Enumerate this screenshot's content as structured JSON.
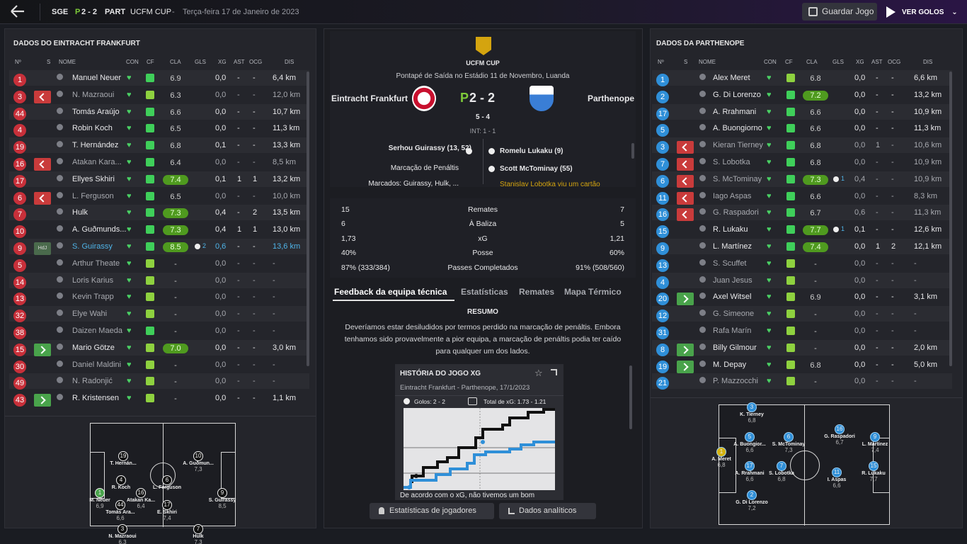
{
  "topbar": {
    "home_abbr": "SGE",
    "score_prefix": "P",
    "score": "2 - 2",
    "away_abbr": "PART",
    "competition": "UCFM CUP",
    "sep": "-",
    "date": "Terça-feira 17 de Janeiro de 2023",
    "save_label": "Guardar Jogo",
    "goals_label": "VER GOLOS"
  },
  "home_panel": {
    "title": "DADOS DO EINTRACHT FRANKFURT"
  },
  "away_panel": {
    "title": "DADOS DA PARTHENOPE"
  },
  "columns": {
    "num": "Nº",
    "s": "S",
    "name": "NOME",
    "con": "CON",
    "cf": "CF",
    "cla": "CLA",
    "gls": "GLS",
    "xg": "XG",
    "ast": "AST",
    "ocg": "OCG",
    "dis": "DIS"
  },
  "home_players": [
    {
      "num": "1",
      "name": "Manuel Neuer",
      "cla": "6.9",
      "gls": "",
      "xg": "0,0",
      "ast": "-",
      "ocg": "-",
      "dis": "6,4 km",
      "sub": "",
      "rg": false,
      "nc": "#c8303a",
      "fitmid": false,
      "dim": false
    },
    {
      "num": "3",
      "name": "N. Mazraoui",
      "cla": "6.3",
      "gls": "",
      "xg": "0,0",
      "ast": "-",
      "ocg": "-",
      "dis": "12,0 km",
      "sub": "out",
      "rg": false,
      "nc": "#c8303a",
      "fitmid": true,
      "dim": true
    },
    {
      "num": "44",
      "name": "Tomás Araújo",
      "cla": "6.6",
      "gls": "",
      "xg": "0,0",
      "ast": "-",
      "ocg": "-",
      "dis": "10,7 km",
      "sub": "",
      "rg": false,
      "nc": "#c8303a",
      "fitmid": false,
      "dim": false
    },
    {
      "num": "4",
      "name": "Robin Koch",
      "cla": "6.5",
      "gls": "",
      "xg": "0,0",
      "ast": "-",
      "ocg": "-",
      "dis": "11,3 km",
      "sub": "",
      "rg": false,
      "nc": "#c8303a",
      "fitmid": false,
      "dim": false
    },
    {
      "num": "19",
      "name": "T. Hernández",
      "cla": "6.8",
      "gls": "",
      "xg": "0,1",
      "ast": "-",
      "ocg": "-",
      "dis": "13,3 km",
      "sub": "",
      "rg": false,
      "nc": "#c8303a",
      "fitmid": false,
      "dim": false
    },
    {
      "num": "16",
      "name": "Atakan Kara...",
      "cla": "6.4",
      "gls": "",
      "xg": "0,0",
      "ast": "-",
      "ocg": "-",
      "dis": "8,5 km",
      "sub": "out",
      "rg": false,
      "nc": "#c8303a",
      "fitmid": false,
      "dim": true
    },
    {
      "num": "17",
      "name": "Ellyes Skhiri",
      "cla": "7.4",
      "gls": "",
      "xg": "0,1",
      "ast": "1",
      "ocg": "1",
      "dis": "13,2 km",
      "sub": "",
      "rg": true,
      "nc": "#c8303a",
      "fitmid": false,
      "dim": false
    },
    {
      "num": "6",
      "name": "L. Ferguson",
      "cla": "6.5",
      "gls": "",
      "xg": "0,0",
      "ast": "-",
      "ocg": "-",
      "dis": "10,0 km",
      "sub": "out",
      "rg": false,
      "nc": "#c8303a",
      "fitmid": false,
      "dim": true
    },
    {
      "num": "7",
      "name": "Hulk",
      "cla": "7.3",
      "gls": "",
      "xg": "0,4",
      "ast": "-",
      "ocg": "2",
      "dis": "13,5 km",
      "sub": "",
      "rg": true,
      "nc": "#c8303a",
      "fitmid": false,
      "dim": false
    },
    {
      "num": "10",
      "name": "A. Guðmunds...",
      "cla": "7.3",
      "gls": "",
      "xg": "0,4",
      "ast": "1",
      "ocg": "1",
      "dis": "13,0 km",
      "sub": "",
      "rg": true,
      "nc": "#c8303a",
      "fitmid": false,
      "dim": false
    },
    {
      "num": "9",
      "name": "S. Guirassy",
      "cla": "8.5",
      "gls": "2",
      "xg": "0,6",
      "ast": "-",
      "ocg": "-",
      "dis": "13,6 km",
      "sub": "hdj",
      "rg": true,
      "nc": "#c8303a",
      "fitmid": false,
      "dim": false,
      "hl": true
    },
    {
      "num": "5",
      "name": "Arthur Theate",
      "cla": "-",
      "gls": "",
      "xg": "0,0",
      "ast": "-",
      "ocg": "-",
      "dis": "-",
      "sub": "",
      "rg": false,
      "nc": "#c8303a",
      "fitmid": true,
      "dim": true
    },
    {
      "num": "14",
      "name": "Loris Karius",
      "cla": "-",
      "gls": "",
      "xg": "0,0",
      "ast": "-",
      "ocg": "-",
      "dis": "-",
      "sub": "",
      "rg": false,
      "nc": "#c8303a",
      "fitmid": true,
      "dim": true
    },
    {
      "num": "13",
      "name": "Kevin Trapp",
      "cla": "-",
      "gls": "",
      "xg": "0,0",
      "ast": "-",
      "ocg": "-",
      "dis": "-",
      "sub": "",
      "rg": false,
      "nc": "#c8303a",
      "fitmid": true,
      "dim": true
    },
    {
      "num": "32",
      "name": "Elye Wahi",
      "cla": "-",
      "gls": "",
      "xg": "0,0",
      "ast": "-",
      "ocg": "-",
      "dis": "-",
      "sub": "",
      "rg": false,
      "nc": "#c8303a",
      "fitmid": true,
      "dim": true
    },
    {
      "num": "38",
      "name": "Daizen Maeda",
      "cla": "-",
      "gls": "",
      "xg": "0,0",
      "ast": "-",
      "ocg": "-",
      "dis": "-",
      "sub": "",
      "rg": false,
      "nc": "#c8303a",
      "fitmid": false,
      "dim": true
    },
    {
      "num": "15",
      "name": "Mario Götze",
      "cla": "7.0",
      "gls": "",
      "xg": "0,0",
      "ast": "-",
      "ocg": "-",
      "dis": "3,0 km",
      "sub": "in",
      "rg": true,
      "nc": "#c8303a",
      "fitmid": true,
      "dim": false
    },
    {
      "num": "30",
      "name": "Daniel Maldini",
      "cla": "-",
      "gls": "",
      "xg": "0,0",
      "ast": "-",
      "ocg": "-",
      "dis": "-",
      "sub": "",
      "rg": false,
      "nc": "#c8303a",
      "fitmid": true,
      "dim": true
    },
    {
      "num": "49",
      "name": "N. Radonjić",
      "cla": "-",
      "gls": "",
      "xg": "0,0",
      "ast": "-",
      "ocg": "-",
      "dis": "-",
      "sub": "",
      "rg": false,
      "nc": "#c8303a",
      "fitmid": true,
      "dim": true
    },
    {
      "num": "43",
      "name": "R. Kristensen",
      "cla": "-",
      "gls": "",
      "xg": "0,0",
      "ast": "-",
      "ocg": "-",
      "dis": "1,1 km",
      "sub": "in",
      "rg": false,
      "nc": "#c8303a",
      "fitmid": true,
      "dim": false
    }
  ],
  "away_players": [
    {
      "num": "1",
      "name": "Alex Meret",
      "cla": "6.8",
      "gls": "",
      "xg": "0,0",
      "ast": "-",
      "ocg": "-",
      "dis": "6,6 km",
      "sub": "",
      "rg": false,
      "nc": "#2f8fd8",
      "fitmid": true,
      "dim": false
    },
    {
      "num": "2",
      "name": "G. Di Lorenzo",
      "cla": "7.2",
      "gls": "",
      "xg": "0,0",
      "ast": "-",
      "ocg": "-",
      "dis": "13,2 km",
      "sub": "",
      "rg": true,
      "nc": "#2f8fd8",
      "fitmid": false,
      "dim": false
    },
    {
      "num": "17",
      "name": "A. Rrahmani",
      "cla": "6.6",
      "gls": "",
      "xg": "0,0",
      "ast": "-",
      "ocg": "-",
      "dis": "10,9 km",
      "sub": "",
      "rg": false,
      "nc": "#2f8fd8",
      "fitmid": false,
      "dim": false
    },
    {
      "num": "5",
      "name": "A. Buongiorno",
      "cla": "6.6",
      "gls": "",
      "xg": "0,0",
      "ast": "-",
      "ocg": "-",
      "dis": "11,3 km",
      "sub": "",
      "rg": false,
      "nc": "#2f8fd8",
      "fitmid": false,
      "dim": false
    },
    {
      "num": "3",
      "name": "Kieran Tierney",
      "cla": "6.8",
      "gls": "",
      "xg": "0,0",
      "ast": "1",
      "ocg": "-",
      "dis": "10,6 km",
      "sub": "out",
      "rg": false,
      "nc": "#2f8fd8",
      "fitmid": false,
      "dim": true
    },
    {
      "num": "7",
      "name": "S. Lobotka",
      "cla": "6.8",
      "gls": "",
      "xg": "0,0",
      "ast": "-",
      "ocg": "-",
      "dis": "10,9 km",
      "sub": "out",
      "rg": false,
      "nc": "#2f8fd8",
      "fitmid": false,
      "dim": true
    },
    {
      "num": "6",
      "name": "S. McTominay",
      "cla": "7.3",
      "gls": "1",
      "xg": "0,4",
      "ast": "-",
      "ocg": "-",
      "dis": "10,9 km",
      "sub": "out",
      "rg": true,
      "nc": "#2f8fd8",
      "fitmid": false,
      "dim": true
    },
    {
      "num": "11",
      "name": "Iago Aspas",
      "cla": "6.6",
      "gls": "",
      "xg": "0,0",
      "ast": "-",
      "ocg": "-",
      "dis": "8,3 km",
      "sub": "out",
      "rg": false,
      "nc": "#2f8fd8",
      "fitmid": false,
      "dim": true
    },
    {
      "num": "16",
      "name": "G. Raspadori",
      "cla": "6.7",
      "gls": "",
      "xg": "0,6",
      "ast": "-",
      "ocg": "-",
      "dis": "11,3 km",
      "sub": "out",
      "rg": false,
      "nc": "#2f8fd8",
      "fitmid": false,
      "dim": true
    },
    {
      "num": "15",
      "name": "R. Lukaku",
      "cla": "7.7",
      "gls": "1",
      "xg": "0,1",
      "ast": "-",
      "ocg": "-",
      "dis": "12,6 km",
      "sub": "",
      "rg": true,
      "nc": "#2f8fd8",
      "fitmid": false,
      "dim": false
    },
    {
      "num": "9",
      "name": "L. Martínez",
      "cla": "7.4",
      "gls": "",
      "xg": "0,0",
      "ast": "1",
      "ocg": "2",
      "dis": "12,1 km",
      "sub": "",
      "rg": true,
      "nc": "#2f8fd8",
      "fitmid": false,
      "dim": false
    },
    {
      "num": "13",
      "name": "S. Scuffet",
      "cla": "-",
      "gls": "",
      "xg": "0,0",
      "ast": "-",
      "ocg": "-",
      "dis": "-",
      "sub": "",
      "rg": false,
      "nc": "#2f8fd8",
      "fitmid": true,
      "dim": true
    },
    {
      "num": "4",
      "name": "Juan Jesus",
      "cla": "-",
      "gls": "",
      "xg": "0,0",
      "ast": "-",
      "ocg": "-",
      "dis": "-",
      "sub": "",
      "rg": false,
      "nc": "#2f8fd8",
      "fitmid": true,
      "dim": true
    },
    {
      "num": "20",
      "name": "Axel Witsel",
      "cla": "6.9",
      "gls": "",
      "xg": "0,0",
      "ast": "-",
      "ocg": "-",
      "dis": "3,1 km",
      "sub": "in",
      "rg": false,
      "nc": "#2f8fd8",
      "fitmid": true,
      "dim": false
    },
    {
      "num": "12",
      "name": "G. Simeone",
      "cla": "-",
      "gls": "",
      "xg": "0,0",
      "ast": "-",
      "ocg": "-",
      "dis": "-",
      "sub": "",
      "rg": false,
      "nc": "#2f8fd8",
      "fitmid": true,
      "dim": true
    },
    {
      "num": "31",
      "name": "Rafa Marín",
      "cla": "-",
      "gls": "",
      "xg": "0,0",
      "ast": "-",
      "ocg": "-",
      "dis": "-",
      "sub": "",
      "rg": false,
      "nc": "#2f8fd8",
      "fitmid": true,
      "dim": true
    },
    {
      "num": "8",
      "name": "Billy Gilmour",
      "cla": "-",
      "gls": "",
      "xg": "0,0",
      "ast": "-",
      "ocg": "-",
      "dis": "2,0 km",
      "sub": "in",
      "rg": false,
      "nc": "#2f8fd8",
      "fitmid": true,
      "dim": false
    },
    {
      "num": "19",
      "name": "M. Depay",
      "cla": "6.8",
      "gls": "",
      "xg": "0,0",
      "ast": "-",
      "ocg": "-",
      "dis": "5,0 km",
      "sub": "in",
      "rg": false,
      "nc": "#2f8fd8",
      "fitmid": true,
      "dim": false
    },
    {
      "num": "21",
      "name": "P. Mazzocchi",
      "cla": "-",
      "gls": "",
      "xg": "0,0",
      "ast": "-",
      "ocg": "-",
      "dis": "-",
      "sub": "",
      "rg": false,
      "nc": "#2f8fd8",
      "fitmid": true,
      "dim": true
    }
  ],
  "match": {
    "cup": "UCFM CUP",
    "kickoff": "Pontapé de Saída no Estádio 11 de Novembro, Luanda",
    "home": "Eintracht Frankfurt",
    "away": "Parthenope",
    "score_prefix": "P",
    "score": "2 - 2",
    "pens": "5 - 4",
    "ht": "INT: 1 - 1",
    "home_events": [
      "Serhou Guirassy (13, 52)",
      "Marcação de Penáltis",
      "Marcados: Guirassy, Hulk, ..."
    ],
    "away_events": [
      "Romelu Lukaku (9)",
      "Scott McTominay (55)",
      "Stanislav Lobotka viu um cartão"
    ]
  },
  "stats": [
    {
      "h": "15",
      "label": "Remates",
      "a": "7"
    },
    {
      "h": "6",
      "label": "À Baliza",
      "a": "5"
    },
    {
      "h": "1,73",
      "label": "xG",
      "a": "1,21"
    },
    {
      "h": "40%",
      "label": "Posse",
      "a": "60%"
    },
    {
      "h": "87% (333/384)",
      "label": "Passes Completados",
      "a": "91% (508/560)"
    }
  ],
  "tabs": [
    "Feedback da equipa técnica",
    "Estatísticas",
    "Remates",
    "Mapa Térmico"
  ],
  "feedback": {
    "title": "RESUMO",
    "text": "Deveríamos estar desiludidos por termos perdido na marcação de penáltis. Embora tenhamos sido provavelmente a pior equipa, a marcação de penáltis podia ter caído para qualquer um dos lados."
  },
  "xg_card": {
    "title": "HISTÓRIA DO JOGO XG",
    "subtitle": "Eintracht Frankfurt - Parthenope, 17/1/2023",
    "goals": "Golos: 2 - 2",
    "total": "Total de xG: 1.73 - 1.21",
    "footer": "De acordo com o xG, não tivemos um bom"
  },
  "bottom_buttons": {
    "players": "Estatísticas de jogadores",
    "analytics": "Dados analíticos"
  },
  "home_pitch": [
    {
      "n": "19",
      "name": "T. Hernán...",
      "r": "",
      "x": 167,
      "y": 608
    },
    {
      "n": "10",
      "name": "A. Guðmun...",
      "r": "7,3",
      "x": 273,
      "y": 608
    },
    {
      "n": "4",
      "name": "R. Koch",
      "r": "",
      "x": 164,
      "y": 642
    },
    {
      "n": "6",
      "name": "L. Ferguson",
      "r": "",
      "x": 229,
      "y": 642
    },
    {
      "n": "1",
      "name": "M. Neuer",
      "r": "6,9",
      "x": 134,
      "y": 660
    },
    {
      "n": "16",
      "name": "Atakan Ka...",
      "r": "6,4",
      "x": 192,
      "y": 660
    },
    {
      "n": "9",
      "name": "S. Guirassy",
      "r": "8,5",
      "x": 307,
      "y": 660
    },
    {
      "n": "44",
      "name": "Tomás Ara...",
      "r": "6,6",
      "x": 163,
      "y": 677
    },
    {
      "n": "17",
      "name": "E. Skhiri",
      "r": "7,4",
      "x": 229,
      "y": 677
    },
    {
      "n": "3",
      "name": "N. Mazraoui",
      "r": "6,3",
      "x": 166,
      "y": 711
    },
    {
      "n": "7",
      "name": "Hulk",
      "r": "7,3",
      "x": 273,
      "y": 711
    }
  ],
  "away_pitch": [
    {
      "n": "3",
      "name": "K. Tierney",
      "r": "6,8",
      "x": 1062,
      "y": 580
    },
    {
      "n": "5",
      "name": "A. Buongior...",
      "r": "6,6",
      "x": 1059,
      "y": 622
    },
    {
      "n": "6",
      "name": "S. McTominay",
      "r": "7,3",
      "x": 1114,
      "y": 622
    },
    {
      "n": "16",
      "name": "G. Raspadori",
      "r": "6,7",
      "x": 1186,
      "y": 611
    },
    {
      "n": "9",
      "name": "L. Martínez",
      "r": "7,4",
      "x": 1236,
      "y": 622
    },
    {
      "n": "1",
      "name": "A. Meret",
      "r": "6,8",
      "x": 1019,
      "y": 643
    },
    {
      "n": "17",
      "name": "A. Rrahmani",
      "r": "6,6",
      "x": 1059,
      "y": 663
    },
    {
      "n": "7",
      "name": "S. Lobotka",
      "r": "6,8",
      "x": 1104,
      "y": 663
    },
    {
      "n": "11",
      "name": "I. Aspas",
      "r": "6,6",
      "x": 1182,
      "y": 672
    },
    {
      "n": "15",
      "name": "R. Lukaku",
      "r": "7,7",
      "x": 1234,
      "y": 663
    },
    {
      "n": "2",
      "name": "G. Di Lorenzo",
      "r": "7,2",
      "x": 1062,
      "y": 704
    }
  ],
  "colors": {
    "home_badge": "#c8303a",
    "away_badge": "#2f8fd8",
    "accent_green": "#7ecb3a",
    "rating_green": "#4f9a1f"
  }
}
